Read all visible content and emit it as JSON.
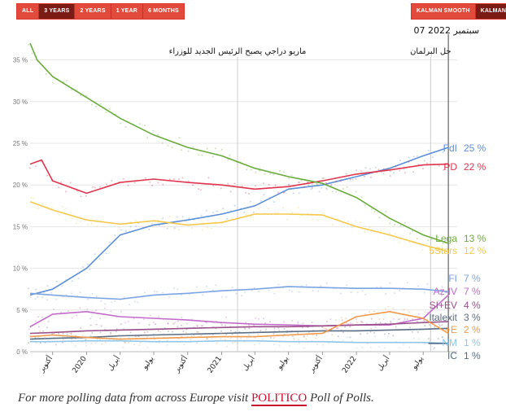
{
  "toolbar": {
    "range_buttons": [
      {
        "label": "ALL",
        "active": false
      },
      {
        "label": "3 YEARS",
        "active": true
      },
      {
        "label": "2 YEARS",
        "active": false
      },
      {
        "label": "1 YEAR",
        "active": false
      },
      {
        "label": "6 MONTHS",
        "active": false
      }
    ],
    "smoothing_buttons": [
      {
        "label": "KALMAN SMOOTH",
        "active": false
      },
      {
        "label": "KALMAN",
        "active": true
      }
    ]
  },
  "footer": {
    "prefix": "For more polling data from across Europe visit ",
    "brand": "POLITICO",
    "suffix": " Poll of Polls."
  },
  "chart_data": {
    "type": "line",
    "title": "",
    "xlabel": "",
    "ylabel": "",
    "ylim": [
      0,
      37.5
    ],
    "yticks": [
      0,
      5,
      10,
      15,
      20,
      25,
      30,
      35
    ],
    "ytick_labels": [
      "0 %",
      "5 %",
      "10 %",
      "15 %",
      "20 %",
      "25 %",
      "30 %",
      "35 %"
    ],
    "xlim": [
      "2019-08-01",
      "2022-10-01"
    ],
    "xticks": [
      {
        "date": "2019-10-01",
        "label": "أكتوبر"
      },
      {
        "date": "2020-01-01",
        "label": "2020"
      },
      {
        "date": "2020-04-01",
        "label": "أبريل"
      },
      {
        "date": "2020-07-01",
        "label": "يوليو"
      },
      {
        "date": "2020-10-01",
        "label": "أكتوبر"
      },
      {
        "date": "2021-01-01",
        "label": "2021"
      },
      {
        "date": "2021-04-01",
        "label": "أبريل"
      },
      {
        "date": "2021-07-01",
        "label": "يوليو"
      },
      {
        "date": "2021-10-01",
        "label": "أكتوبر"
      },
      {
        "date": "2022-01-01",
        "label": "2022"
      },
      {
        "date": "2022-04-01",
        "label": "أبريل"
      },
      {
        "date": "2022-07-01",
        "label": "يوليو"
      }
    ],
    "grid": true,
    "annotations": [
      {
        "date": "2021-02-13",
        "label": "ماريو دراجي يصبح الرئيس الجديد للوزراء"
      },
      {
        "date": "2022-07-21",
        "label": "حل البرلمان"
      },
      {
        "date": "2022-09-07",
        "label": "07 سبتمبر 2022",
        "cursor": true
      }
    ],
    "legend": "right",
    "series": [
      {
        "name": "FdI",
        "label": "25 %",
        "color": "#5b8fd6",
        "x": [
          "2019-08-01",
          "2019-10-01",
          "2020-01-01",
          "2020-04-01",
          "2020-07-01",
          "2020-10-01",
          "2021-01-01",
          "2021-04-01",
          "2021-07-01",
          "2021-10-01",
          "2022-01-01",
          "2022-04-01",
          "2022-07-01",
          "2022-09-07"
        ],
        "values": [
          6.8,
          7.5,
          10,
          14,
          15.2,
          15.8,
          16.5,
          17.5,
          19.5,
          20,
          21,
          22,
          23.5,
          24.5
        ]
      },
      {
        "name": "PD",
        "label": "22 %",
        "color": "#e0344c",
        "x": [
          "2019-08-01",
          "2019-09-01",
          "2019-10-01",
          "2020-01-01",
          "2020-04-01",
          "2020-07-01",
          "2020-10-01",
          "2021-01-01",
          "2021-04-01",
          "2021-07-01",
          "2021-10-01",
          "2022-01-01",
          "2022-04-01",
          "2022-07-01",
          "2022-09-07"
        ],
        "values": [
          22.5,
          23,
          20.5,
          19,
          20.3,
          20.7,
          20.3,
          20,
          19.5,
          19.8,
          20.5,
          21.3,
          21.8,
          22.4,
          22.5
        ]
      },
      {
        "name": "Lega",
        "label": "13 %",
        "color": "#6aab3c",
        "x": [
          "2019-08-01",
          "2019-08-20",
          "2019-10-01",
          "2020-01-01",
          "2020-04-01",
          "2020-07-01",
          "2020-10-01",
          "2021-01-01",
          "2021-04-01",
          "2021-07-01",
          "2021-10-01",
          "2022-01-01",
          "2022-04-01",
          "2022-07-01",
          "2022-09-07"
        ],
        "values": [
          37,
          35,
          33,
          30.5,
          28,
          26,
          24.5,
          23.5,
          22,
          21,
          20.2,
          18.5,
          16,
          14,
          13
        ]
      },
      {
        "name": "5Stars",
        "label": "12 %",
        "color": "#f5c84c",
        "x": [
          "2019-08-01",
          "2019-10-01",
          "2020-01-01",
          "2020-04-01",
          "2020-07-01",
          "2020-10-01",
          "2021-01-01",
          "2021-04-01",
          "2021-07-01",
          "2021-10-01",
          "2022-01-01",
          "2022-04-01",
          "2022-07-01",
          "2022-09-07"
        ],
        "values": [
          18,
          17,
          15.8,
          15.3,
          15.7,
          15.2,
          15.5,
          16.5,
          16.5,
          16.4,
          15,
          14,
          12.8,
          12
        ]
      },
      {
        "name": "FI",
        "label": "7 %",
        "color": "#7ba4e2",
        "x": [
          "2019-08-01",
          "2019-10-01",
          "2020-01-01",
          "2020-04-01",
          "2020-07-01",
          "2020-10-01",
          "2021-01-01",
          "2021-04-01",
          "2021-07-01",
          "2021-10-01",
          "2022-01-01",
          "2022-04-01",
          "2022-07-01",
          "2022-09-07"
        ],
        "values": [
          7,
          6.8,
          6.5,
          6.3,
          6.8,
          7,
          7.3,
          7.5,
          7.8,
          7.7,
          7.6,
          7.6,
          7.5,
          7.2
        ]
      },
      {
        "name": "Az-IV",
        "label": "7 %",
        "color": "#c36bc9",
        "x": [
          "2019-08-01",
          "2019-10-01",
          "2020-01-01",
          "2020-04-01",
          "2020-07-01",
          "2020-10-01",
          "2021-01-01",
          "2021-04-01",
          "2021-07-01",
          "2021-10-01",
          "2022-01-01",
          "2022-04-01",
          "2022-07-01",
          "2022-09-07"
        ],
        "values": [
          3,
          4.5,
          4.8,
          4.2,
          4,
          3.8,
          3.5,
          3.3,
          3.2,
          3.1,
          3.2,
          3.2,
          4,
          6.8
        ]
      },
      {
        "name": "SI+EV",
        "label": "4 %",
        "color": "#9a4f8b",
        "x": [
          "2019-08-01",
          "2019-10-01",
          "2020-01-01",
          "2020-04-01",
          "2020-07-01",
          "2020-10-01",
          "2021-01-01",
          "2021-04-01",
          "2021-07-01",
          "2021-10-01",
          "2022-01-01",
          "2022-04-01",
          "2022-07-01",
          "2022-09-07"
        ],
        "values": [
          2.2,
          2.3,
          2.5,
          2.6,
          2.7,
          2.8,
          2.9,
          3,
          3,
          3.1,
          3.2,
          3.3,
          3.5,
          3.6
        ]
      },
      {
        "name": "Italexit",
        "label": "3 %",
        "color": "#5a6d85",
        "x": [
          "2019-08-01",
          "2019-10-01",
          "2020-01-01",
          "2020-04-01",
          "2020-07-01",
          "2020-10-01",
          "2021-01-01",
          "2021-04-01",
          "2021-07-01",
          "2021-10-01",
          "2022-01-01",
          "2022-04-01",
          "2022-07-01",
          "2022-09-07"
        ],
        "values": [
          1.5,
          1.6,
          1.7,
          1.9,
          2,
          2.1,
          2.2,
          2.3,
          2.4,
          2.5,
          2.5,
          2.6,
          2.7,
          2.8
        ]
      },
      {
        "name": "+E",
        "label": "2 %",
        "color": "#f2994a",
        "x": [
          "2019-08-01",
          "2019-10-01",
          "2020-01-01",
          "2020-04-01",
          "2020-07-01",
          "2020-10-01",
          "2021-01-01",
          "2021-04-01",
          "2021-07-01",
          "2021-10-01",
          "2022-01-01",
          "2022-04-01",
          "2022-07-01",
          "2022-09-07"
        ],
        "values": [
          1.8,
          2,
          1.7,
          1.5,
          1.6,
          1.7,
          1.8,
          1.8,
          2,
          2.2,
          4.2,
          4.8,
          4,
          2.2
        ]
      },
      {
        "name": "NM",
        "label": "1 %",
        "color": "#8fc6e8",
        "x": [
          "2019-08-01",
          "2019-10-01",
          "2020-01-01",
          "2020-04-01",
          "2020-07-01",
          "2020-10-01",
          "2021-01-01",
          "2021-04-01",
          "2021-07-01",
          "2021-10-01",
          "2022-01-01",
          "2022-04-01",
          "2022-07-01",
          "2022-09-07"
        ],
        "values": [
          1.2,
          1.2,
          1.3,
          1.3,
          1.2,
          1.2,
          1.3,
          1.3,
          1.2,
          1.2,
          1.1,
          1.1,
          1.1,
          1
        ]
      },
      {
        "name": "IC",
        "label": "1 %",
        "color": "#4f6d88",
        "x": [
          "2022-07-15",
          "2022-09-07"
        ],
        "values": [
          1,
          1
        ]
      }
    ]
  }
}
